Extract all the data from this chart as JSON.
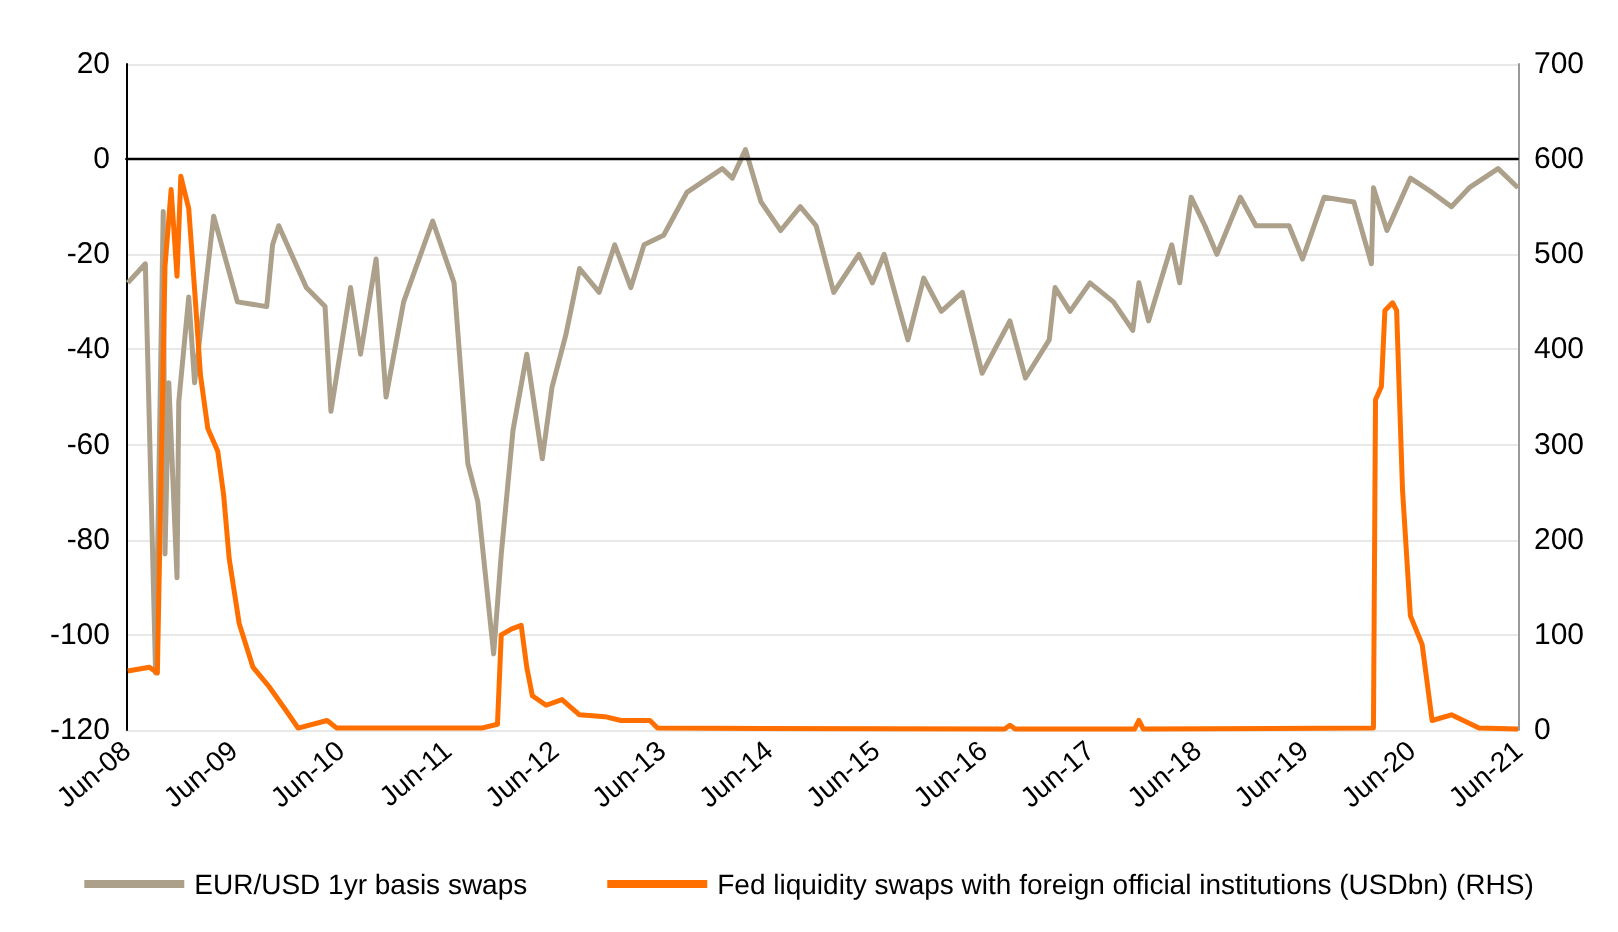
{
  "chart_data": {
    "type": "line",
    "xlim": [
      "2008-06",
      "2021-06"
    ],
    "ylim": [
      -120,
      20
    ],
    "y2lim": [
      0,
      700
    ],
    "yticks": [
      -120,
      -100,
      -80,
      -60,
      -40,
      -20,
      0,
      20
    ],
    "y2ticks": [
      0,
      100,
      200,
      300,
      400,
      500,
      600,
      700
    ],
    "xticks": [
      {
        "value": "2008-06",
        "label": "Jun-08"
      },
      {
        "value": "2009-06",
        "label": "Jun-09"
      },
      {
        "value": "2010-06",
        "label": "Jun-10"
      },
      {
        "value": "2011-06",
        "label": "Jun-11"
      },
      {
        "value": "2012-06",
        "label": "Jun-12"
      },
      {
        "value": "2013-06",
        "label": "Jun-13"
      },
      {
        "value": "2014-06",
        "label": "Jun-14"
      },
      {
        "value": "2015-06",
        "label": "Jun-15"
      },
      {
        "value": "2016-06",
        "label": "Jun-16"
      },
      {
        "value": "2017-06",
        "label": "Jun-17"
      },
      {
        "value": "2018-06",
        "label": "Jun-18"
      },
      {
        "value": "2019-06",
        "label": "Jun-19"
      },
      {
        "value": "2020-06",
        "label": "Jun-20"
      },
      {
        "value": "2021-06",
        "label": "Jun-21"
      }
    ],
    "grid": "y",
    "legend": "bottom",
    "marker": "none",
    "line_style": "solid",
    "ref_lines": [
      {
        "axis": "y",
        "value": 0,
        "color": "#000000"
      }
    ],
    "series": [
      {
        "name": "EUR/USD 1yr basis swaps",
        "color": "#aca08a",
        "x": [
          "2008-06-07",
          "2008-08-06",
          "2008-09-10",
          "2008-10-06",
          "2008-10-12",
          "2008-10-25",
          "2008-11-22",
          "2008-11-28",
          "2009-01-01",
          "2009-01-21",
          "2009-03-27",
          "2009-06-16",
          "2009-09-24",
          "2009-10-14",
          "2009-11-04",
          "2010-02-06",
          "2010-04-11",
          "2010-05-01",
          "2010-07-07",
          "2010-08-10",
          "2010-10-02",
          "2010-11-05",
          "2011-01-04",
          "2011-04-13",
          "2011-06-25",
          "2011-08-11",
          "2011-09-14",
          "2011-11-07",
          "2011-12-03",
          "2012-01-12",
          "2012-02-28",
          "2012-04-21",
          "2012-05-24",
          "2012-07-10",
          "2012-08-26",
          "2012-11-01",
          "2012-12-24",
          "2013-02-17",
          "2013-04-03",
          "2013-06-09",
          "2013-08-27",
          "2013-12-26",
          "2014-01-29",
          "2014-03-15",
          "2014-05-07",
          "2014-07-13",
          "2014-09-18",
          "2014-11-11",
          "2015-01-10",
          "2015-04-06",
          "2015-05-22",
          "2015-07-01",
          "2015-09-20",
          "2015-11-13",
          "2016-01-12",
          "2016-03-24",
          "2016-05-30",
          "2016-09-02",
          "2016-10-25",
          "2017-01-14",
          "2017-02-03",
          "2017-03-26",
          "2017-06-02",
          "2017-08-21",
          "2017-10-26",
          "2017-11-16",
          "2017-12-19",
          "2018-03-08",
          "2018-04-04",
          "2018-05-13",
          "2018-06-29",
          "2018-08-09",
          "2018-10-28",
          "2018-12-20",
          "2019-04-12",
          "2019-05-28",
          "2019-08-10",
          "2019-11-19",
          "2020-01-18",
          "2020-01-25",
          "2020-03-11",
          "2020-05-30",
          "2020-08-12",
          "2020-10-17",
          "2020-12-17",
          "2021-03-25",
          "2021-06-01"
        ],
        "values": [
          -26,
          -22,
          -108,
          -11,
          -83,
          -47,
          -88,
          -51,
          -29,
          -47,
          -12,
          -30,
          -31,
          -18,
          -14,
          -27,
          -31,
          -53,
          -27,
          -41,
          -21,
          -50,
          -30,
          -13,
          -26,
          -64,
          -72,
          -104,
          -83,
          -57,
          -41,
          -63,
          -48,
          -37,
          -23,
          -28,
          -18,
          -27,
          -18,
          -16,
          -7,
          -2,
          -4,
          2,
          -9,
          -15,
          -10,
          -14,
          -28,
          -20,
          -26,
          -20,
          -38,
          -25,
          -32,
          -28,
          -45,
          -34,
          -46,
          -38,
          -27,
          -32,
          -26,
          -30,
          -36,
          -26,
          -34,
          -18,
          -26,
          -8,
          -14,
          -20,
          -8,
          -14,
          -14,
          -21,
          -8,
          -9,
          -22,
          -6,
          -15,
          -4,
          -7,
          -10,
          -6,
          -2,
          -6
        ]
      },
      {
        "name": "Fed liquidity swaps with foreign official institutions (USDbn) (RHS)",
        "color": "#ff6f00",
        "axis": "y2",
        "x": [
          "2008-06-07",
          "2008-08-20",
          "2008-09-16",
          "2008-10-12",
          "2008-11-02",
          "2008-11-22",
          "2008-12-05",
          "2009-01-01",
          "2009-01-21",
          "2009-02-10",
          "2009-03-07",
          "2009-04-10",
          "2009-04-30",
          "2009-05-19",
          "2009-06-22",
          "2009-08-08",
          "2009-10-01",
          "2009-11-30",
          "2010-01-09",
          "2010-04-18",
          "2010-05-21",
          "2011-09-27",
          "2011-11-20",
          "2011-12-03",
          "2012-01-06",
          "2012-02-09",
          "2012-02-28",
          "2012-03-18",
          "2012-05-04",
          "2012-06-27",
          "2012-08-26",
          "2012-11-21",
          "2013-01-14",
          "2013-04-23",
          "2013-05-19",
          "2016-08-15",
          "2016-09-02",
          "2016-09-20",
          "2017-11-01",
          "2017-11-16",
          "2017-12-01",
          "2020-01-25",
          "2020-02-01",
          "2020-02-21",
          "2020-03-04",
          "2020-03-30",
          "2020-04-13",
          "2020-05-03",
          "2020-05-30",
          "2020-07-09",
          "2020-08-12",
          "2020-10-17",
          "2021-01-19",
          "2021-06-01"
        ],
        "values": [
          62,
          66,
          60,
          487,
          568,
          477,
          582,
          548,
          463,
          373,
          317,
          293,
          247,
          180,
          112,
          66,
          46,
          20,
          2,
          10,
          2,
          2,
          6,
          100,
          106,
          110,
          66,
          36,
          26,
          32,
          16,
          14,
          10,
          10,
          2,
          1,
          5,
          1,
          1,
          10,
          1,
          2,
          347,
          361,
          441,
          449,
          441,
          253,
          120,
          90,
          10,
          16,
          2,
          1
        ]
      }
    ]
  }
}
